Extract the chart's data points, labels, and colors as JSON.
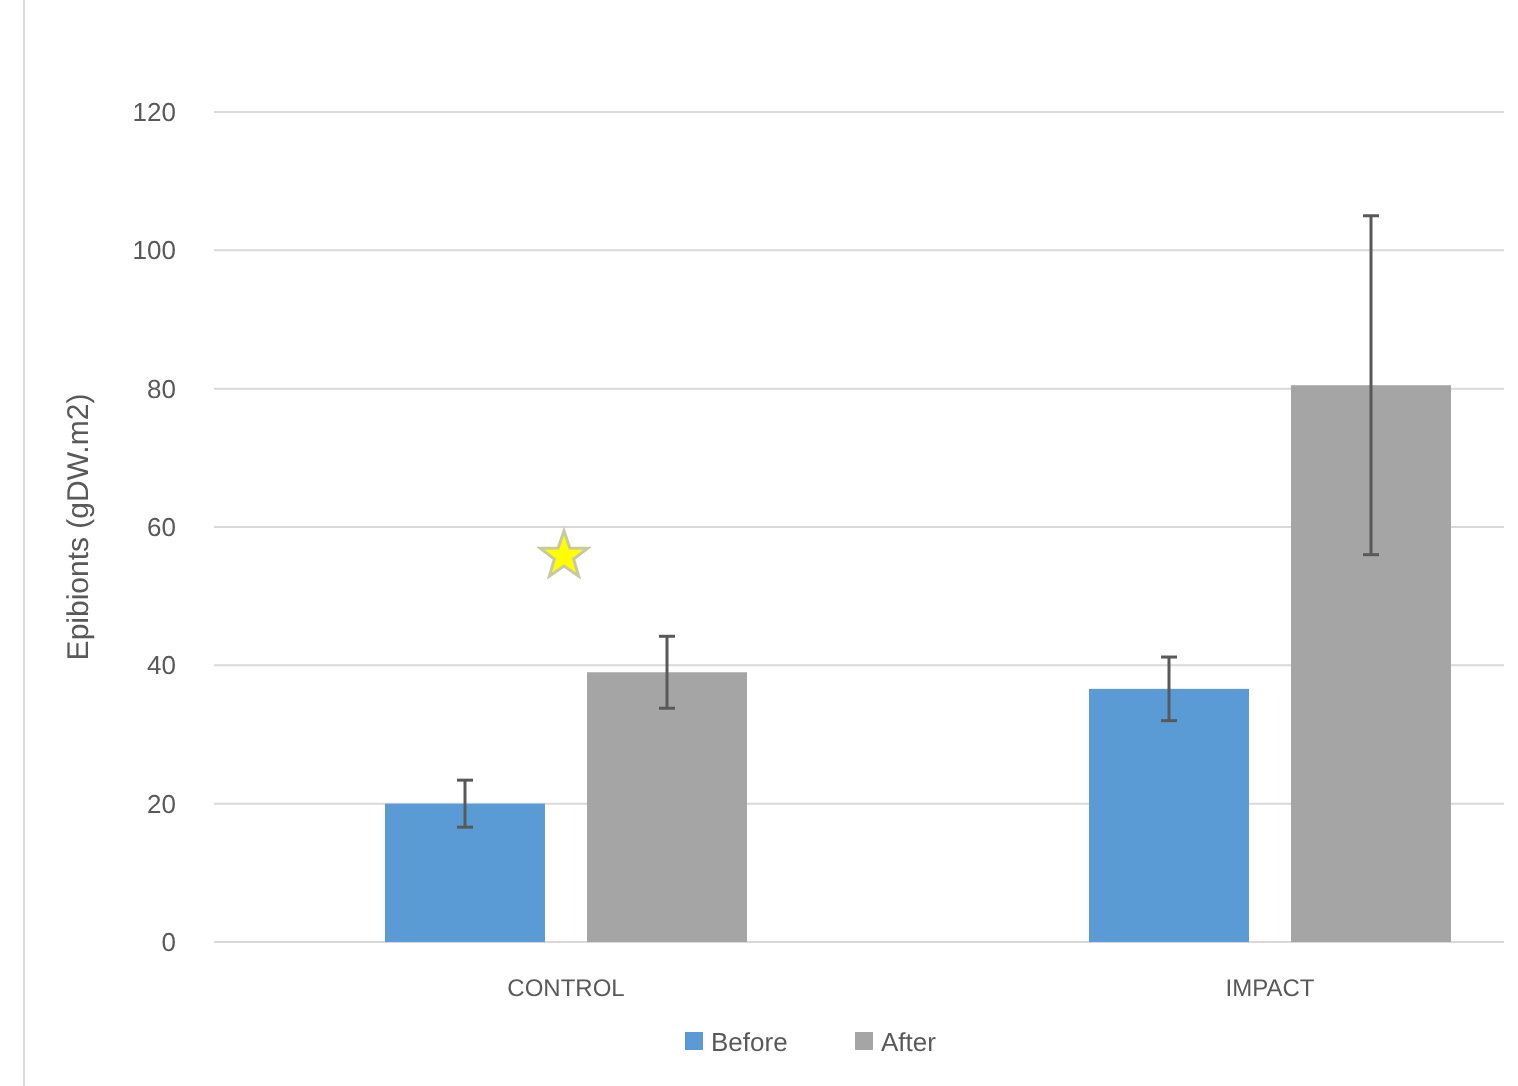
{
  "chart_data": {
    "type": "bar",
    "ylabel": "Epibionts (gDW.m2)",
    "categories": [
      "CONTROL",
      "IMPACT"
    ],
    "series": [
      {
        "name": "Before",
        "color": "#5b9bd5",
        "values": [
          20,
          36.6
        ],
        "errors": [
          3.4,
          4.6
        ]
      },
      {
        "name": "After",
        "color": "#a5a5a5",
        "values": [
          39,
          80.5
        ],
        "errors": [
          5.2,
          24.5
        ]
      }
    ],
    "ylim": [
      0,
      120
    ],
    "yticks": [
      0,
      20,
      40,
      60,
      80,
      100,
      120
    ],
    "grid": "y",
    "legend": "bottom"
  }
}
